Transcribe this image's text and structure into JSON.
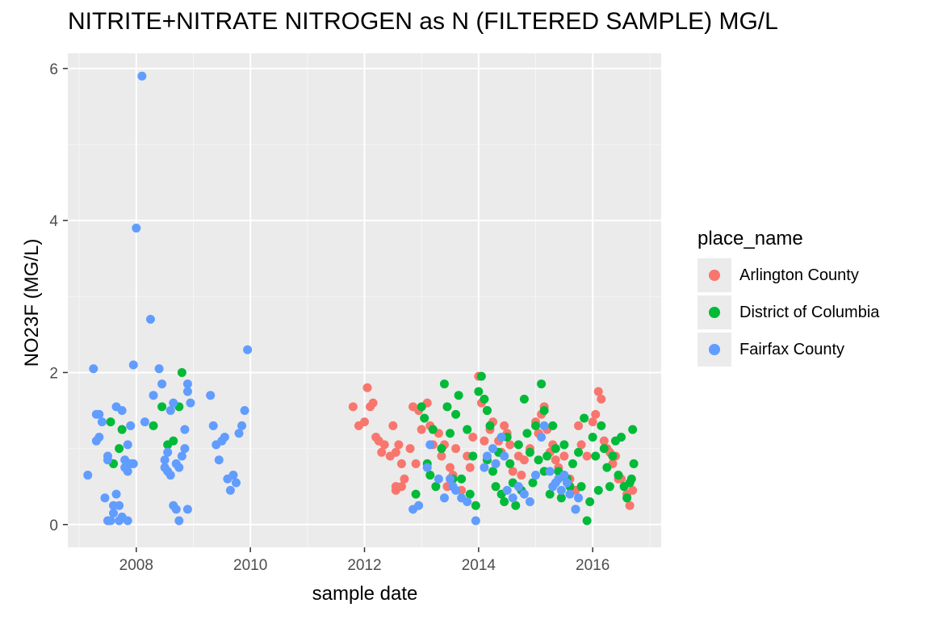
{
  "chart_data": {
    "type": "scatter",
    "title": "NITRITE+NITRATE NITROGEN as N (FILTERED SAMPLE) MG/L",
    "xlabel": "sample date",
    "ylabel": "NO23F (MG/L)",
    "x_ticks": [
      "2008",
      "2010",
      "2012",
      "2014",
      "2016"
    ],
    "y_ticks": [
      "0",
      "2",
      "4",
      "6"
    ],
    "xlim": [
      2006.8,
      2017.2
    ],
    "ylim": [
      -0.3,
      6.2
    ],
    "grid": true,
    "legend": {
      "title": "place_name",
      "placement": "right"
    },
    "series": [
      {
        "name": "Arlington County",
        "color": "#F8766D",
        "points": [
          [
            2011.8,
            1.55
          ],
          [
            2011.9,
            1.3
          ],
          [
            2012.0,
            1.35
          ],
          [
            2012.05,
            1.8
          ],
          [
            2012.1,
            1.55
          ],
          [
            2012.15,
            1.6
          ],
          [
            2012.2,
            1.15
          ],
          [
            2012.25,
            1.1
          ],
          [
            2012.3,
            0.95
          ],
          [
            2012.35,
            1.05
          ],
          [
            2012.45,
            0.9
          ],
          [
            2012.5,
            1.3
          ],
          [
            2012.55,
            0.95
          ],
          [
            2012.6,
            1.05
          ],
          [
            2012.65,
            0.8
          ],
          [
            2012.55,
            0.5
          ],
          [
            2012.65,
            0.5
          ],
          [
            2012.7,
            0.6
          ],
          [
            2012.8,
            1.0
          ],
          [
            2012.85,
            1.55
          ],
          [
            2012.9,
            0.8
          ],
          [
            2012.95,
            1.5
          ],
          [
            2013.0,
            1.25
          ],
          [
            2013.1,
            1.6
          ],
          [
            2013.15,
            1.3
          ],
          [
            2013.2,
            1.05
          ],
          [
            2013.3,
            1.2
          ],
          [
            2013.35,
            0.9
          ],
          [
            2013.4,
            1.05
          ],
          [
            2013.5,
            0.75
          ],
          [
            2013.55,
            0.65
          ],
          [
            2013.6,
            1.0
          ],
          [
            2013.7,
            0.45
          ],
          [
            2013.8,
            0.9
          ],
          [
            2013.85,
            0.75
          ],
          [
            2013.9,
            1.15
          ],
          [
            2014.0,
            1.95
          ],
          [
            2014.05,
            1.6
          ],
          [
            2014.1,
            1.1
          ],
          [
            2014.15,
            1.5
          ],
          [
            2014.2,
            1.25
          ],
          [
            2014.25,
            1.35
          ],
          [
            2014.3,
            0.8
          ],
          [
            2014.35,
            1.1
          ],
          [
            2014.4,
            0.95
          ],
          [
            2014.45,
            1.3
          ],
          [
            2014.5,
            1.2
          ],
          [
            2014.55,
            1.05
          ],
          [
            2014.6,
            0.7
          ],
          [
            2014.7,
            0.9
          ],
          [
            2014.8,
            0.85
          ],
          [
            2014.9,
            1.0
          ],
          [
            2015.0,
            1.35
          ],
          [
            2015.05,
            1.2
          ],
          [
            2015.1,
            1.45
          ],
          [
            2015.15,
            1.55
          ],
          [
            2015.2,
            1.25
          ],
          [
            2015.25,
            0.95
          ],
          [
            2015.3,
            1.05
          ],
          [
            2015.35,
            0.85
          ],
          [
            2015.4,
            0.75
          ],
          [
            2015.5,
            0.9
          ],
          [
            2015.6,
            0.6
          ],
          [
            2015.7,
            0.45
          ],
          [
            2015.75,
            1.3
          ],
          [
            2015.8,
            1.05
          ],
          [
            2015.9,
            0.9
          ],
          [
            2016.0,
            1.35
          ],
          [
            2016.05,
            1.45
          ],
          [
            2016.1,
            1.75
          ],
          [
            2016.15,
            1.65
          ],
          [
            2016.2,
            1.1
          ],
          [
            2016.25,
            1.0
          ],
          [
            2016.3,
            0.95
          ],
          [
            2016.35,
            0.8
          ],
          [
            2016.4,
            0.9
          ],
          [
            2016.45,
            0.6
          ],
          [
            2016.5,
            0.6
          ],
          [
            2016.6,
            0.4
          ],
          [
            2016.65,
            0.25
          ],
          [
            2016.7,
            0.45
          ],
          [
            2012.55,
            0.45
          ],
          [
            2013.45,
            0.5
          ],
          [
            2014.75,
            0.65
          ]
        ]
      },
      {
        "name": "District of Columbia",
        "color": "#00BA38",
        "points": [
          [
            2007.55,
            1.35
          ],
          [
            2007.7,
            1.0
          ],
          [
            2007.75,
            1.25
          ],
          [
            2007.6,
            0.8
          ],
          [
            2008.3,
            1.3
          ],
          [
            2008.45,
            1.55
          ],
          [
            2008.55,
            1.05
          ],
          [
            2008.8,
            2.0
          ],
          [
            2008.75,
            1.55
          ],
          [
            2008.65,
            1.1
          ],
          [
            2012.9,
            0.4
          ],
          [
            2013.0,
            1.55
          ],
          [
            2013.05,
            1.4
          ],
          [
            2013.1,
            0.8
          ],
          [
            2013.2,
            1.25
          ],
          [
            2013.25,
            0.5
          ],
          [
            2013.35,
            1.0
          ],
          [
            2013.4,
            1.85
          ],
          [
            2013.45,
            1.55
          ],
          [
            2013.5,
            1.2
          ],
          [
            2013.55,
            0.6
          ],
          [
            2013.6,
            1.45
          ],
          [
            2013.65,
            1.7
          ],
          [
            2013.7,
            0.6
          ],
          [
            2013.8,
            1.25
          ],
          [
            2013.85,
            0.4
          ],
          [
            2013.9,
            0.9
          ],
          [
            2013.95,
            0.25
          ],
          [
            2014.0,
            1.75
          ],
          [
            2014.05,
            1.95
          ],
          [
            2014.1,
            1.65
          ],
          [
            2014.15,
            1.5
          ],
          [
            2014.2,
            1.3
          ],
          [
            2014.25,
            0.7
          ],
          [
            2014.3,
            0.5
          ],
          [
            2014.35,
            0.95
          ],
          [
            2014.4,
            0.4
          ],
          [
            2014.45,
            0.3
          ],
          [
            2014.5,
            1.15
          ],
          [
            2014.55,
            0.8
          ],
          [
            2014.6,
            0.55
          ],
          [
            2014.65,
            0.25
          ],
          [
            2014.7,
            1.05
          ],
          [
            2014.75,
            0.45
          ],
          [
            2014.8,
            1.65
          ],
          [
            2014.85,
            1.2
          ],
          [
            2014.9,
            0.95
          ],
          [
            2014.95,
            0.55
          ],
          [
            2015.0,
            1.3
          ],
          [
            2015.05,
            0.85
          ],
          [
            2015.1,
            1.85
          ],
          [
            2015.15,
            1.5
          ],
          [
            2015.2,
            0.9
          ],
          [
            2015.25,
            0.4
          ],
          [
            2015.3,
            1.3
          ],
          [
            2015.35,
            1.0
          ],
          [
            2015.4,
            0.7
          ],
          [
            2015.45,
            0.35
          ],
          [
            2015.5,
            1.05
          ],
          [
            2015.55,
            0.6
          ],
          [
            2015.6,
            0.5
          ],
          [
            2015.65,
            0.8
          ],
          [
            2015.7,
            0.2
          ],
          [
            2015.75,
            0.95
          ],
          [
            2015.8,
            0.5
          ],
          [
            2015.85,
            1.4
          ],
          [
            2015.9,
            0.05
          ],
          [
            2015.95,
            0.3
          ],
          [
            2016.0,
            1.15
          ],
          [
            2016.05,
            0.9
          ],
          [
            2016.1,
            0.45
          ],
          [
            2016.15,
            1.3
          ],
          [
            2016.2,
            1.0
          ],
          [
            2016.25,
            0.75
          ],
          [
            2016.3,
            0.5
          ],
          [
            2016.35,
            0.9
          ],
          [
            2016.4,
            1.1
          ],
          [
            2016.45,
            0.65
          ],
          [
            2016.5,
            1.15
          ],
          [
            2016.55,
            0.5
          ],
          [
            2016.6,
            0.35
          ],
          [
            2016.65,
            0.55
          ],
          [
            2016.7,
            1.25
          ],
          [
            2016.72,
            0.8
          ],
          [
            2016.68,
            0.6
          ],
          [
            2013.15,
            0.65
          ],
          [
            2014.15,
            0.85
          ],
          [
            2015.15,
            0.7
          ]
        ]
      },
      {
        "name": "Fairfax County",
        "color": "#619CFF",
        "points": [
          [
            2007.15,
            0.65
          ],
          [
            2007.25,
            2.05
          ],
          [
            2007.3,
            1.45
          ],
          [
            2007.3,
            1.1
          ],
          [
            2007.35,
            1.15
          ],
          [
            2007.35,
            1.45
          ],
          [
            2007.4,
            1.35
          ],
          [
            2007.45,
            0.35
          ],
          [
            2007.5,
            0.85
          ],
          [
            2007.5,
            0.9
          ],
          [
            2007.5,
            0.05
          ],
          [
            2007.55,
            0.05
          ],
          [
            2007.6,
            0.25
          ],
          [
            2007.6,
            0.15
          ],
          [
            2007.65,
            0.4
          ],
          [
            2007.65,
            1.55
          ],
          [
            2007.7,
            0.05
          ],
          [
            2007.7,
            0.25
          ],
          [
            2007.75,
            1.5
          ],
          [
            2007.75,
            0.1
          ],
          [
            2007.8,
            0.85
          ],
          [
            2007.8,
            0.75
          ],
          [
            2007.85,
            0.05
          ],
          [
            2007.85,
            0.7
          ],
          [
            2007.85,
            1.05
          ],
          [
            2007.9,
            0.8
          ],
          [
            2007.9,
            1.3
          ],
          [
            2007.95,
            2.1
          ],
          [
            2007.95,
            0.8
          ],
          [
            2008.0,
            3.9
          ],
          [
            2008.1,
            5.9
          ],
          [
            2008.15,
            1.35
          ],
          [
            2008.25,
            2.7
          ],
          [
            2008.3,
            1.7
          ],
          [
            2008.4,
            2.05
          ],
          [
            2008.45,
            1.85
          ],
          [
            2008.5,
            0.75
          ],
          [
            2008.5,
            0.85
          ],
          [
            2008.55,
            0.7
          ],
          [
            2008.55,
            0.95
          ],
          [
            2008.6,
            0.65
          ],
          [
            2008.6,
            1.5
          ],
          [
            2008.65,
            1.6
          ],
          [
            2008.65,
            0.25
          ],
          [
            2008.7,
            0.8
          ],
          [
            2008.7,
            0.2
          ],
          [
            2008.75,
            0.05
          ],
          [
            2008.75,
            0.75
          ],
          [
            2008.8,
            0.9
          ],
          [
            2008.85,
            1.25
          ],
          [
            2008.85,
            1.0
          ],
          [
            2008.9,
            1.85
          ],
          [
            2008.9,
            1.75
          ],
          [
            2008.95,
            1.6
          ],
          [
            2008.9,
            0.2
          ],
          [
            2009.3,
            1.7
          ],
          [
            2009.35,
            1.3
          ],
          [
            2009.4,
            1.05
          ],
          [
            2009.45,
            0.85
          ],
          [
            2009.5,
            1.1
          ],
          [
            2009.55,
            1.15
          ],
          [
            2009.6,
            0.6
          ],
          [
            2009.65,
            0.45
          ],
          [
            2009.7,
            0.65
          ],
          [
            2009.75,
            0.55
          ],
          [
            2009.8,
            1.2
          ],
          [
            2009.85,
            1.3
          ],
          [
            2009.9,
            1.5
          ],
          [
            2009.95,
            2.3
          ],
          [
            2012.85,
            0.2
          ],
          [
            2012.95,
            0.25
          ],
          [
            2013.1,
            0.75
          ],
          [
            2013.15,
            1.05
          ],
          [
            2013.3,
            0.6
          ],
          [
            2013.4,
            0.35
          ],
          [
            2013.5,
            0.6
          ],
          [
            2013.55,
            0.5
          ],
          [
            2013.6,
            0.45
          ],
          [
            2013.7,
            0.35
          ],
          [
            2013.8,
            0.3
          ],
          [
            2013.95,
            0.05
          ],
          [
            2014.1,
            0.75
          ],
          [
            2014.15,
            0.9
          ],
          [
            2014.25,
            1.0
          ],
          [
            2014.3,
            0.8
          ],
          [
            2014.4,
            1.15
          ],
          [
            2014.45,
            0.9
          ],
          [
            2014.5,
            0.45
          ],
          [
            2014.6,
            0.35
          ],
          [
            2014.7,
            0.5
          ],
          [
            2014.8,
            0.4
          ],
          [
            2014.9,
            0.3
          ],
          [
            2015.0,
            0.65
          ],
          [
            2015.1,
            1.15
          ],
          [
            2015.15,
            1.3
          ],
          [
            2015.25,
            0.7
          ],
          [
            2015.3,
            0.5
          ],
          [
            2015.35,
            0.55
          ],
          [
            2015.4,
            0.6
          ],
          [
            2015.45,
            0.45
          ],
          [
            2015.5,
            0.65
          ],
          [
            2015.55,
            0.55
          ],
          [
            2015.6,
            0.4
          ],
          [
            2015.7,
            0.2
          ],
          [
            2015.75,
            0.35
          ]
        ]
      }
    ]
  }
}
